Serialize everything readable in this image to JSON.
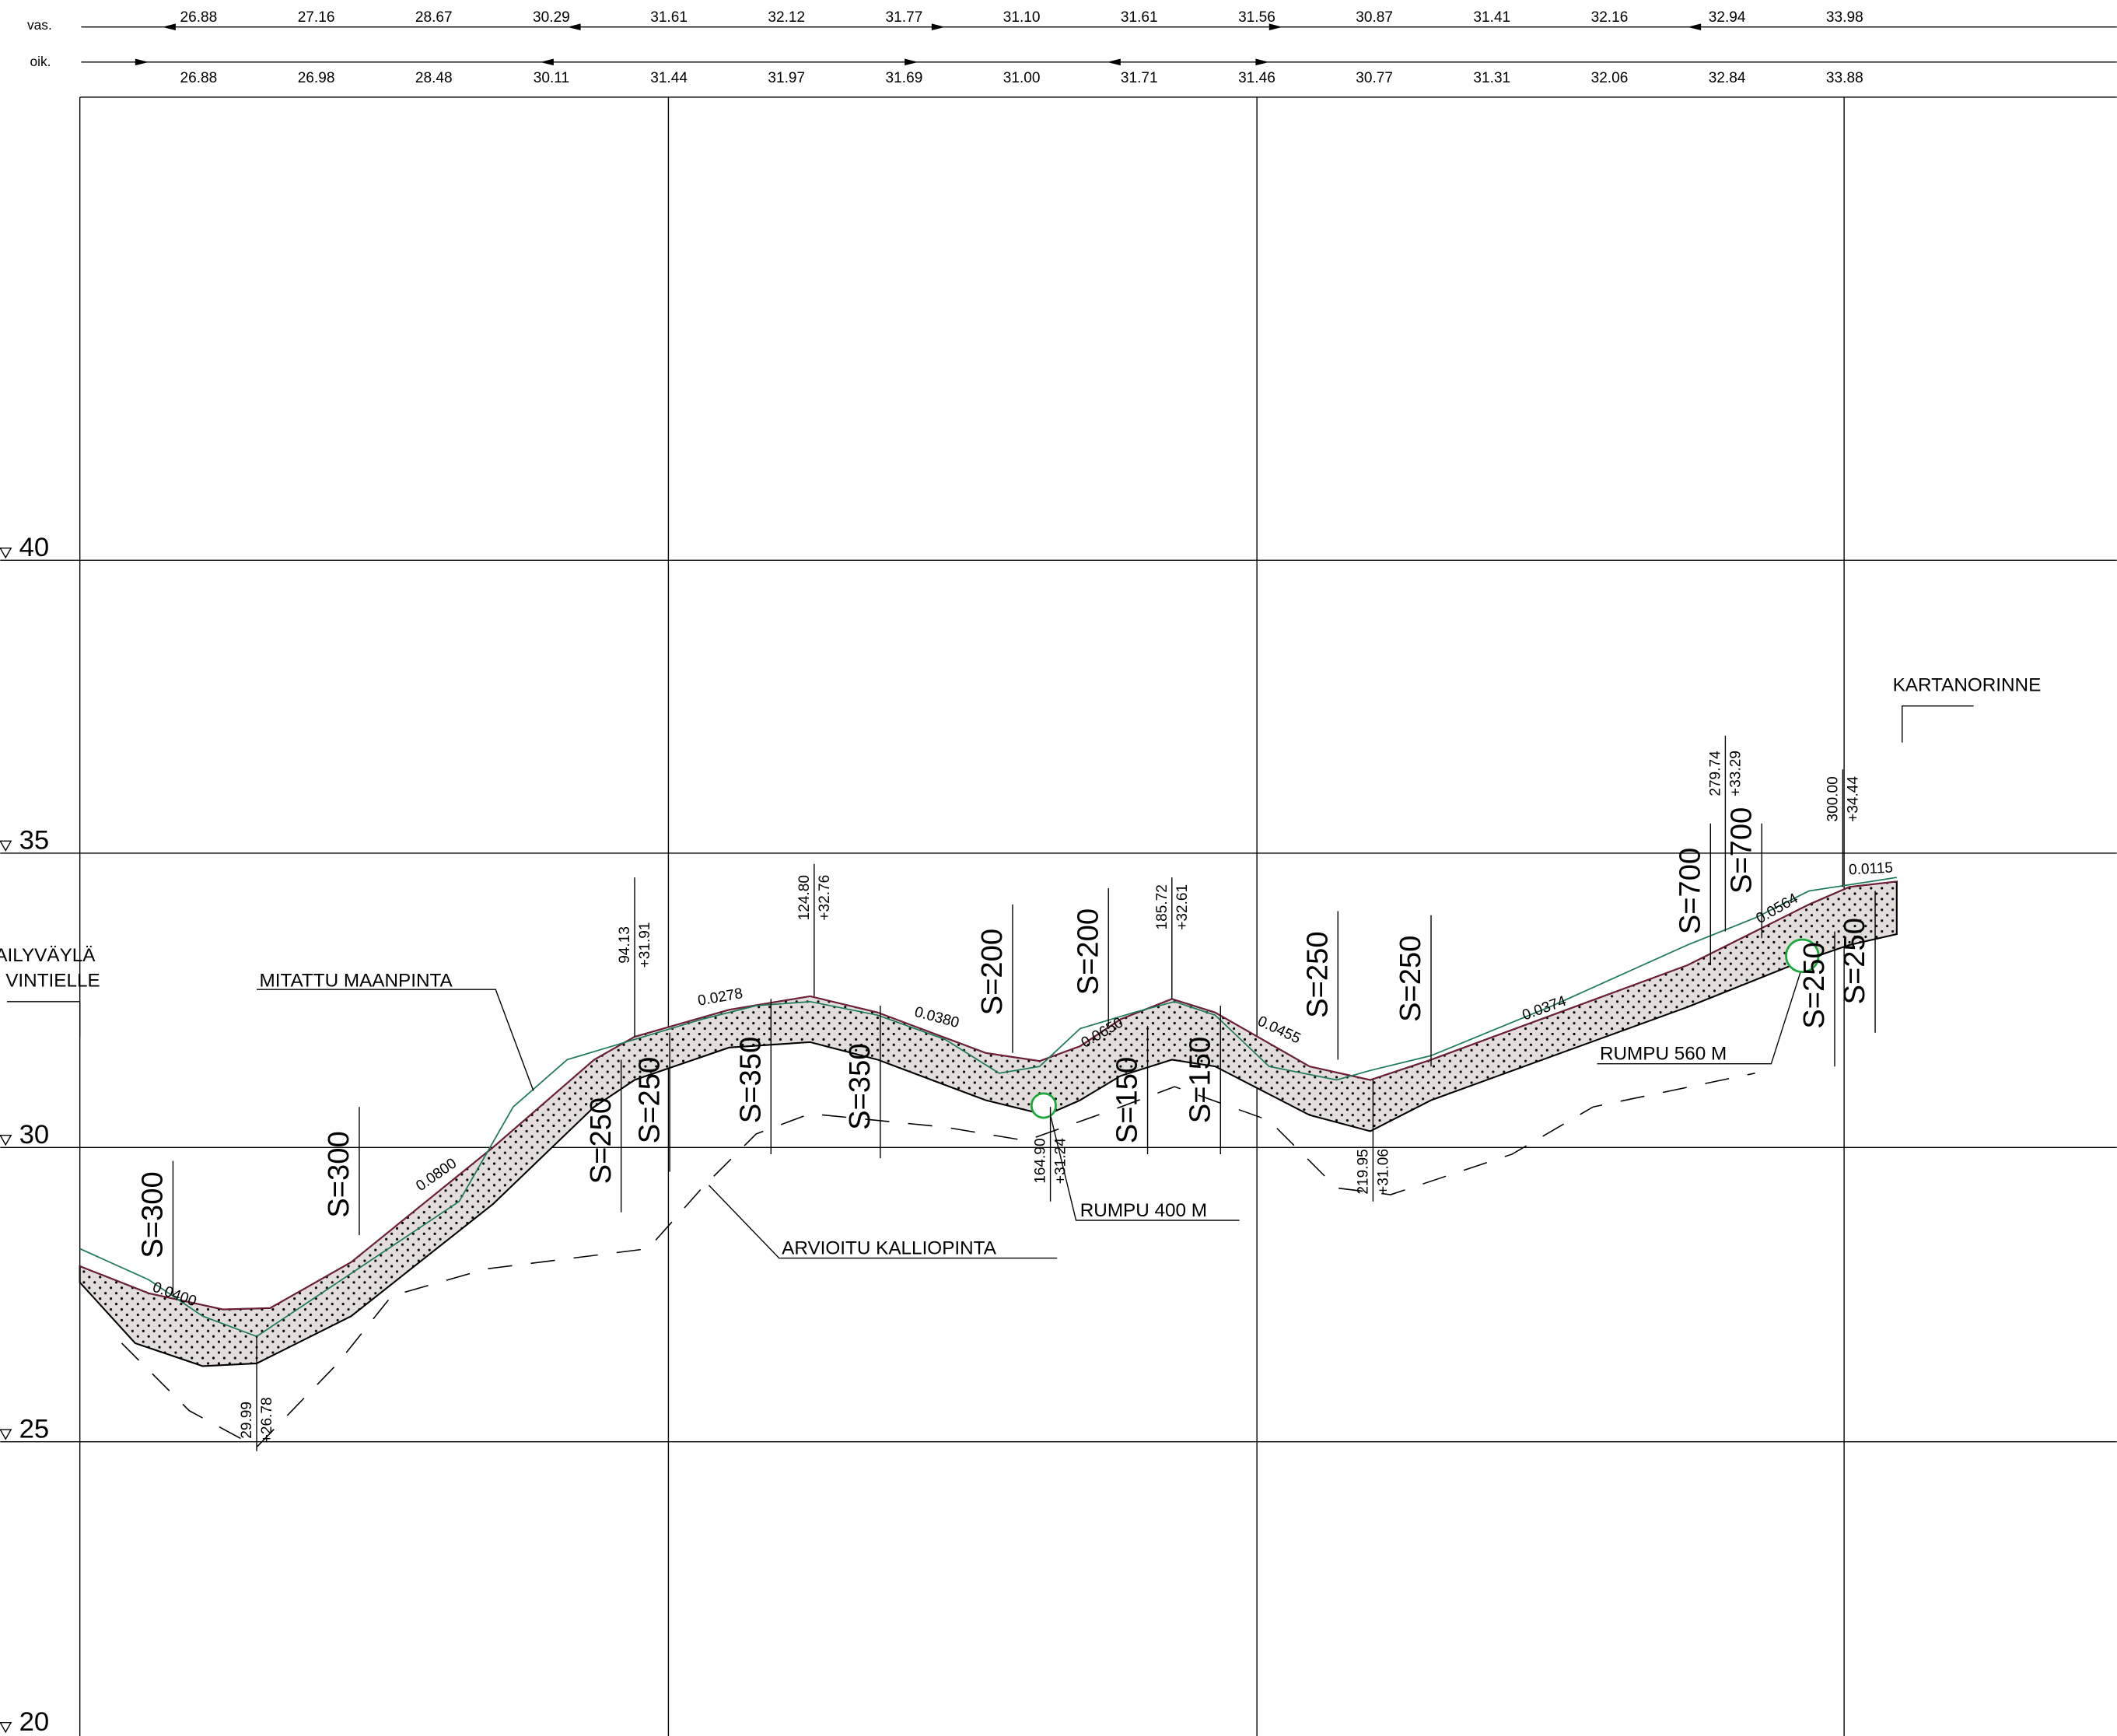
{
  "header": {
    "rows": [
      {
        "label": "vas.",
        "values": [
          "26.88",
          "27.16",
          "28.67",
          "30.29",
          "31.61",
          "32.12",
          "31.77",
          "31.10",
          "31.61",
          "31.56",
          "30.87",
          "31.41",
          "32.16",
          "32.94",
          "33.98"
        ]
      },
      {
        "label": "oik.",
        "values": [
          "26.88",
          "26.98",
          "28.48",
          "30.11",
          "31.44",
          "31.97",
          "31.69",
          "31.00",
          "31.71",
          "31.46",
          "30.77",
          "31.31",
          "32.06",
          "32.84",
          "33.88"
        ]
      }
    ]
  },
  "elevations": [
    40,
    35,
    30,
    25,
    20
  ],
  "side_labels": {
    "left_top": "AILYVÄYLÄ",
    "left_bottom": "VINTIELLE",
    "right": "KARTANORINNE"
  },
  "annotations": [
    "MITATTU MAANPINTA",
    "ARVIOITU KALLIOPINTA",
    "RUMPU 400 M",
    "RUMPU 560 M"
  ],
  "curves": [
    "S=300",
    "S=300",
    "S=250",
    "S=250",
    "S=350",
    "S=350",
    "S=200",
    "S=200",
    "S=150",
    "S=150",
    "S=250",
    "S=250",
    "S=700",
    "S=700",
    "S=250",
    "S=250"
  ],
  "slopes": [
    "0.0400",
    "0.0800",
    "0.0278",
    "0.0380",
    "0.0650",
    "0.0455",
    "0.0374",
    "0.0564",
    "0.0115"
  ],
  "points": [
    {
      "station": "29.99",
      "elevation": "+26.78"
    },
    {
      "station": "94.13",
      "elevation": "+31.91"
    },
    {
      "station": "124.80",
      "elevation": "+32.76"
    },
    {
      "station": "164.90",
      "elevation": "+31.24"
    },
    {
      "station": "185.72",
      "elevation": "+32.61"
    },
    {
      "station": "219.95",
      "elevation": "+31.06"
    },
    {
      "station": "279.74",
      "elevation": "+33.29"
    },
    {
      "station": "300.00",
      "elevation": "+34.44"
    }
  ]
}
